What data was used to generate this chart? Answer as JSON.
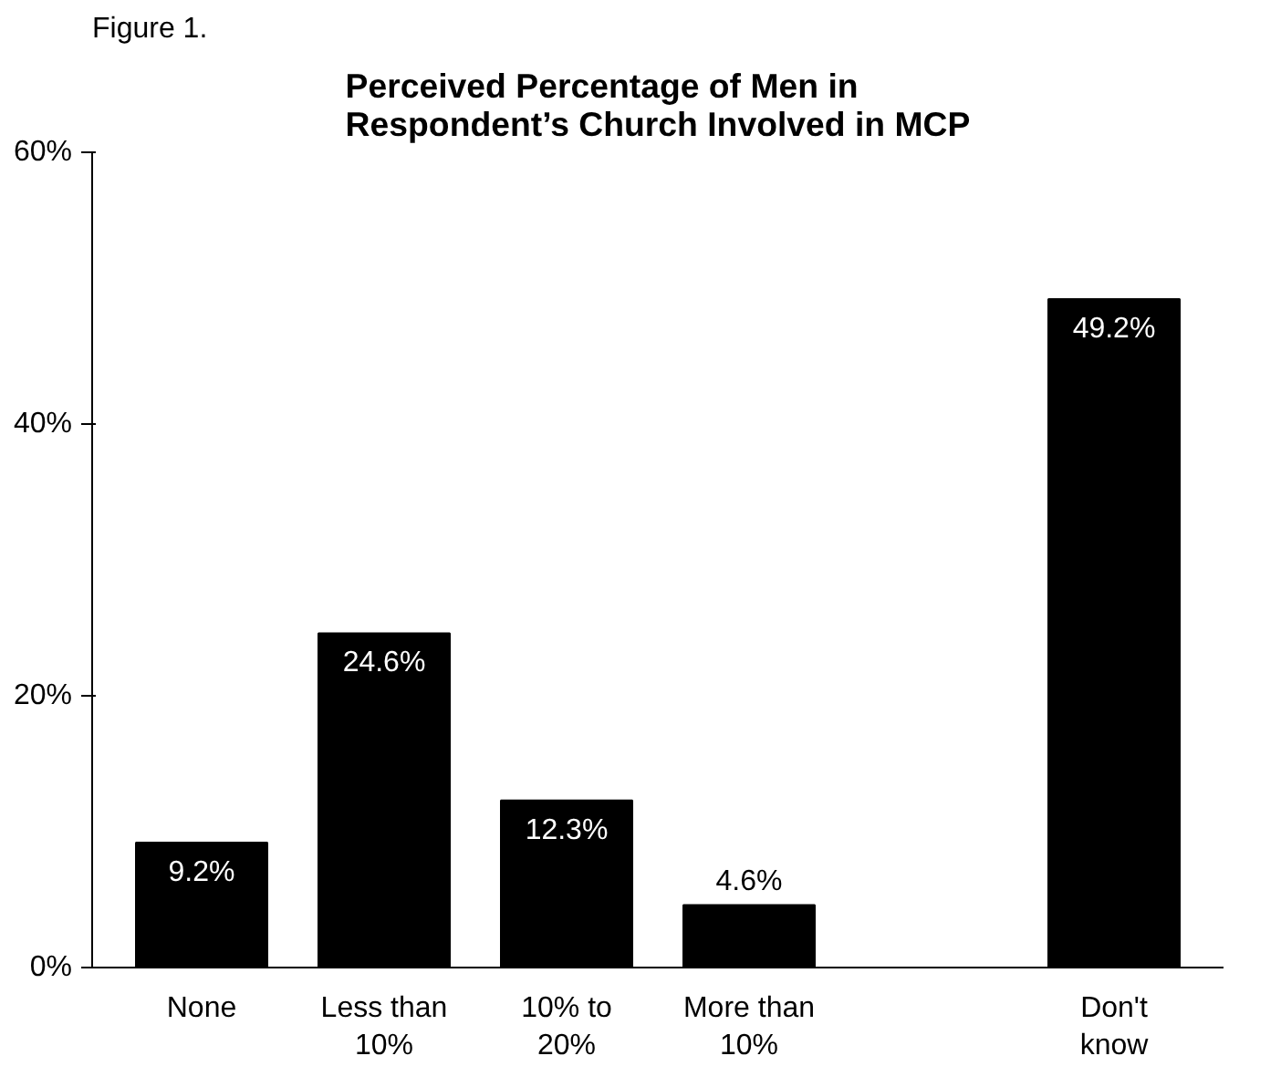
{
  "chart_data": {
    "type": "bar",
    "title": "Perceived Percentage of Men in\nRespondent’s Church Involved in MCP",
    "annotations": [
      "Figure 1."
    ],
    "categories": [
      "None",
      "Less than\n10%",
      "10% to\n20%",
      "More than\n10%",
      null,
      "Don't\nknow"
    ],
    "values": [
      9.2,
      24.6,
      12.3,
      4.6,
      null,
      49.2
    ],
    "value_labels": [
      "9.2%",
      "24.6%",
      "12.3%",
      "4.6%",
      null,
      "49.2%"
    ],
    "color": "#000000",
    "ylim": [
      0,
      60
    ],
    "yticks": [
      {
        "value": 0,
        "label": "0%"
      },
      {
        "value": 20,
        "label": "20%"
      },
      {
        "value": 40,
        "label": "40%"
      },
      {
        "value": 60,
        "label": "60%"
      }
    ],
    "grid": false
  }
}
